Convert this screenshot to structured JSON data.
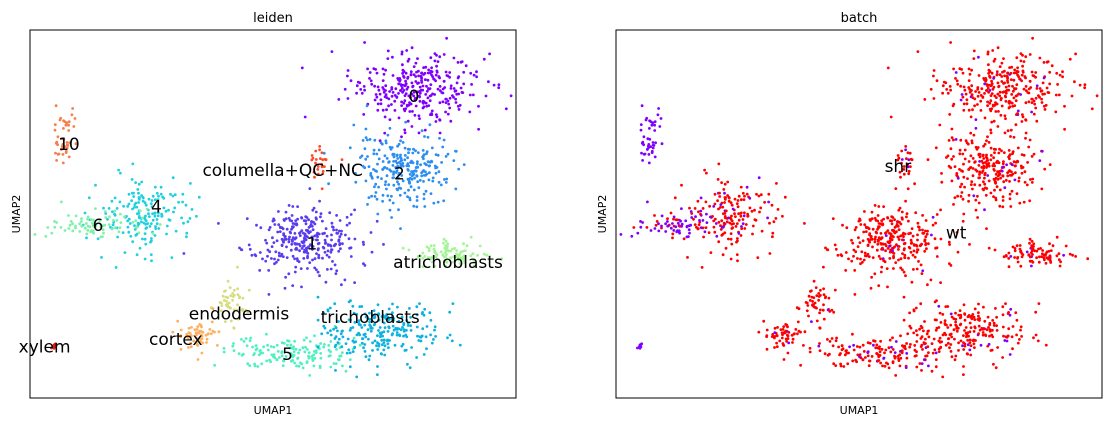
{
  "chart_data": [
    {
      "type": "scatter",
      "title": "leiden",
      "xlabel": "UMAP1",
      "ylabel": "UMAP2",
      "xlim": [
        0,
        100
      ],
      "ylim": [
        0,
        100
      ],
      "grid": false,
      "legend": "on data",
      "series": [
        {
          "name": "0",
          "color": "#8000ff",
          "center": [
            79,
            84
          ],
          "spread": [
            12,
            9
          ]
        },
        {
          "name": "1",
          "color": "#5a3cf0",
          "center": [
            56,
            43
          ],
          "spread": [
            11,
            8
          ]
        },
        {
          "name": "2",
          "color": "#2e8ef0",
          "center": [
            77,
            62
          ],
          "spread": [
            9,
            9
          ]
        },
        {
          "name": "4",
          "color": "#20cfe0",
          "center": [
            24,
            50
          ],
          "spread": [
            9,
            9
          ]
        },
        {
          "name": "5",
          "color": "#52f0c0",
          "center": [
            54,
            12
          ],
          "spread": [
            12,
            4
          ]
        },
        {
          "name": "6",
          "color": "#7ff2a8",
          "center": [
            13,
            47
          ],
          "spread": [
            8,
            4
          ]
        },
        {
          "name": "10",
          "color": "#f57f4c",
          "center": [
            7,
            71
          ],
          "spread": [
            2,
            8
          ]
        },
        {
          "name": "atrichoblasts",
          "color": "#a3f595",
          "center": [
            87,
            39
          ],
          "spread": [
            7,
            3
          ]
        },
        {
          "name": "trichoblasts",
          "color": "#0db2df",
          "center": [
            72,
            18
          ],
          "spread": [
            11,
            8
          ]
        },
        {
          "name": "columella+QC+NC",
          "color": "#ff4a26",
          "center": [
            60,
            63
          ],
          "spread": [
            2,
            4
          ]
        },
        {
          "name": "endodermis",
          "color": "#d7dc7e",
          "center": [
            41,
            26
          ],
          "spread": [
            3,
            6
          ]
        },
        {
          "name": "cortex",
          "color": "#ffb060",
          "center": [
            35,
            17
          ],
          "spread": [
            4,
            4
          ]
        },
        {
          "name": "xylem",
          "color": "#e8170d",
          "center": [
            5,
            14
          ],
          "spread": [
            0.6,
            1
          ]
        }
      ]
    },
    {
      "type": "scatter",
      "title": "batch",
      "xlabel": "UMAP1",
      "ylabel": "UMAP2",
      "xlim": [
        0,
        100
      ],
      "ylim": [
        0,
        100
      ],
      "grid": false,
      "legend": "on data",
      "series": [
        {
          "name": "shr",
          "color": "#8000ff"
        },
        {
          "name": "wt",
          "color": "#ff0000"
        }
      ]
    }
  ]
}
